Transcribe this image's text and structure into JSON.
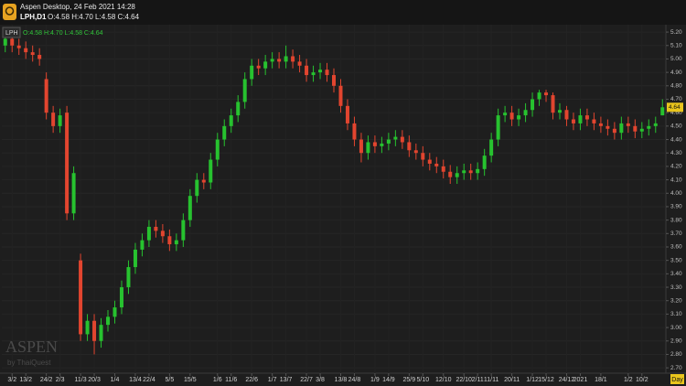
{
  "header": {
    "title": "Aspen Desktop, 24 Feb 2021 14:28",
    "symbol": "LPH,D1",
    "quote": "O:4.58 H:4.70 L:4.58 C:4.64"
  },
  "legend": {
    "symbol": "LPH",
    "quote": "O:4.58 H:4.70 L:4.58 C:4.64"
  },
  "watermark": {
    "brand": "ASPEN",
    "by": "by ThaiQuest"
  },
  "chart_data": {
    "type": "candlestick",
    "timeframe": "Day",
    "up_color": "#27c22f",
    "down_color": "#e2452f",
    "grid": true,
    "categories": [
      null,
      "3/2",
      null,
      "13/2",
      null,
      null,
      "24/2",
      null,
      "2/3",
      null,
      null,
      "11/3",
      null,
      "20/3",
      null,
      null,
      "1/4",
      null,
      null,
      "13/4",
      null,
      "22/4",
      null,
      null,
      "5/5",
      null,
      null,
      "15/5",
      null,
      null,
      null,
      "1/6",
      null,
      "11/6",
      null,
      null,
      "22/6",
      null,
      null,
      "1/7",
      null,
      "13/7",
      null,
      null,
      "22/7",
      null,
      "3/8",
      null,
      null,
      "13/8",
      null,
      "24/8",
      null,
      null,
      "1/9",
      null,
      "14/9",
      null,
      null,
      "25/9",
      null,
      "5/10",
      null,
      null,
      "12/10",
      null,
      null,
      "22/10",
      null,
      "2/11",
      null,
      "11/11",
      null,
      null,
      "20/11",
      null,
      null,
      "1/12",
      null,
      "15/12",
      null,
      null,
      "24/12",
      null,
      "2021",
      null,
      null,
      "18/1",
      null,
      null,
      null,
      "1/2",
      null,
      "10/2",
      null,
      null,
      null
    ],
    "open": [
      5.1,
      5.15,
      5.1,
      5.08,
      5.05,
      5.03,
      4.85,
      4.6,
      4.5,
      4.6,
      3.85,
      3.5,
      2.95,
      3.05,
      2.9,
      3.02,
      3.08,
      3.15,
      3.3,
      3.45,
      3.58,
      3.65,
      3.75,
      3.72,
      3.68,
      3.62,
      3.65,
      3.8,
      3.98,
      4.1,
      4.08,
      4.25,
      4.4,
      4.5,
      4.58,
      4.68,
      4.85,
      4.95,
      4.93,
      4.98,
      5.0,
      4.98,
      5.02,
      4.98,
      4.95,
      4.88,
      4.9,
      4.92,
      4.88,
      4.8,
      4.65,
      4.52,
      4.4,
      4.3,
      4.38,
      4.35,
      4.37,
      4.4,
      4.42,
      4.38,
      4.32,
      4.3,
      4.25,
      4.22,
      4.2,
      4.16,
      4.12,
      4.15,
      4.17,
      4.15,
      4.18,
      4.28,
      4.4,
      4.58,
      4.6,
      4.55,
      4.58,
      4.62,
      4.7,
      4.75,
      4.73,
      4.6,
      4.62,
      4.55,
      4.52,
      4.58,
      4.55,
      4.52,
      4.5,
      4.48,
      4.45,
      4.52,
      4.5,
      4.46,
      4.48,
      4.5,
      4.58
    ],
    "high": [
      5.2,
      5.2,
      5.15,
      5.13,
      5.1,
      5.08,
      4.9,
      4.65,
      4.63,
      4.65,
      4.2,
      3.55,
      3.1,
      3.1,
      3.07,
      3.13,
      3.2,
      3.35,
      3.5,
      3.63,
      3.7,
      3.8,
      3.8,
      3.77,
      3.73,
      3.7,
      3.85,
      4.03,
      4.15,
      4.15,
      4.3,
      4.45,
      4.55,
      4.63,
      4.73,
      4.9,
      5.0,
      5.0,
      5.03,
      5.05,
      5.05,
      5.1,
      5.07,
      5.03,
      5.0,
      4.95,
      4.97,
      4.97,
      4.93,
      4.85,
      4.7,
      4.57,
      4.45,
      4.43,
      4.43,
      4.42,
      4.45,
      4.47,
      4.47,
      4.43,
      4.37,
      4.35,
      4.3,
      4.27,
      4.25,
      4.21,
      4.2,
      4.22,
      4.22,
      4.23,
      4.33,
      4.45,
      4.63,
      4.65,
      4.65,
      4.63,
      4.67,
      4.75,
      4.77,
      4.77,
      4.75,
      4.67,
      4.65,
      4.6,
      4.63,
      4.63,
      4.6,
      4.57,
      4.55,
      4.53,
      4.57,
      4.57,
      4.55,
      4.53,
      4.55,
      4.57,
      4.7
    ],
    "low": [
      5.05,
      5.05,
      5.03,
      5.0,
      4.98,
      4.95,
      4.55,
      4.45,
      4.45,
      3.8,
      3.8,
      2.9,
      2.9,
      2.8,
      2.85,
      2.97,
      3.03,
      3.1,
      3.25,
      3.4,
      3.53,
      3.6,
      3.67,
      3.63,
      3.57,
      3.57,
      3.6,
      3.75,
      3.93,
      4.03,
      4.03,
      4.2,
      4.35,
      4.45,
      4.53,
      4.63,
      4.8,
      4.88,
      4.88,
      4.93,
      4.93,
      4.93,
      4.93,
      4.9,
      4.83,
      4.83,
      4.85,
      4.83,
      4.75,
      4.6,
      4.47,
      4.35,
      4.23,
      4.25,
      4.3,
      4.3,
      4.32,
      4.35,
      4.33,
      4.27,
      4.25,
      4.2,
      4.17,
      4.15,
      4.11,
      4.07,
      4.07,
      4.1,
      4.1,
      4.1,
      4.13,
      4.23,
      4.35,
      4.53,
      4.5,
      4.5,
      4.53,
      4.57,
      4.65,
      4.68,
      4.55,
      4.55,
      4.5,
      4.47,
      4.47,
      4.5,
      4.47,
      4.45,
      4.43,
      4.4,
      4.4,
      4.45,
      4.41,
      4.41,
      4.43,
      4.45,
      4.58
    ],
    "close": [
      5.15,
      5.1,
      5.08,
      5.05,
      5.03,
      5.0,
      4.6,
      4.5,
      4.58,
      3.85,
      4.15,
      2.95,
      3.05,
      2.9,
      3.02,
      3.08,
      3.15,
      3.3,
      3.45,
      3.58,
      3.65,
      3.75,
      3.72,
      3.68,
      3.62,
      3.65,
      3.8,
      3.98,
      4.1,
      4.08,
      4.25,
      4.4,
      4.5,
      4.58,
      4.68,
      4.85,
      4.95,
      4.93,
      4.98,
      5.0,
      4.98,
      5.02,
      4.98,
      4.95,
      4.88,
      4.9,
      4.92,
      4.88,
      4.8,
      4.65,
      4.52,
      4.4,
      4.3,
      4.38,
      4.35,
      4.37,
      4.4,
      4.42,
      4.38,
      4.32,
      4.3,
      4.25,
      4.22,
      4.2,
      4.16,
      4.12,
      4.15,
      4.17,
      4.15,
      4.18,
      4.28,
      4.4,
      4.58,
      4.6,
      4.55,
      4.58,
      4.62,
      4.7,
      4.75,
      4.73,
      4.6,
      4.62,
      4.55,
      4.52,
      4.58,
      4.55,
      4.52,
      4.5,
      4.48,
      4.45,
      4.52,
      4.5,
      4.46,
      4.48,
      4.5,
      4.52,
      4.64
    ],
    "ylim": [
      2.66,
      5.255
    ],
    "yticks": [
      {
        "value": 2.7,
        "label": "2.70"
      },
      {
        "value": 2.8,
        "label": "2.80"
      },
      {
        "value": 2.9,
        "label": "2.90"
      },
      {
        "value": 3,
        "label": "3.00"
      },
      {
        "value": 3.1,
        "label": "3.10"
      },
      {
        "value": 3.2,
        "label": "3.20"
      },
      {
        "value": 3.3,
        "label": "3.30"
      },
      {
        "value": 3.4,
        "label": "3.40"
      },
      {
        "value": 3.5,
        "label": "3.50"
      },
      {
        "value": 3.6,
        "label": "3.60"
      },
      {
        "value": 3.7,
        "label": "3.70"
      },
      {
        "value": 3.8,
        "label": "3.80"
      },
      {
        "value": 3.9,
        "label": "3.90"
      },
      {
        "value": 4,
        "label": "4.00"
      },
      {
        "value": 4.1,
        "label": "4.10"
      },
      {
        "value": 4.2,
        "label": "4.20"
      },
      {
        "value": 4.3,
        "label": "4.30"
      },
      {
        "value": 4.4,
        "label": "4.40"
      },
      {
        "value": 4.5,
        "label": "4.50"
      },
      {
        "value": 4.6,
        "label": "4.60"
      },
      {
        "value": 4.7,
        "label": "4.70"
      },
      {
        "value": 4.8,
        "label": "4.80"
      },
      {
        "value": 4.9,
        "label": "4.90"
      },
      {
        "value": 5,
        "label": "5.00"
      },
      {
        "value": 5.1,
        "label": "5.10"
      },
      {
        "value": 5.2,
        "label": "5.20"
      }
    ]
  }
}
